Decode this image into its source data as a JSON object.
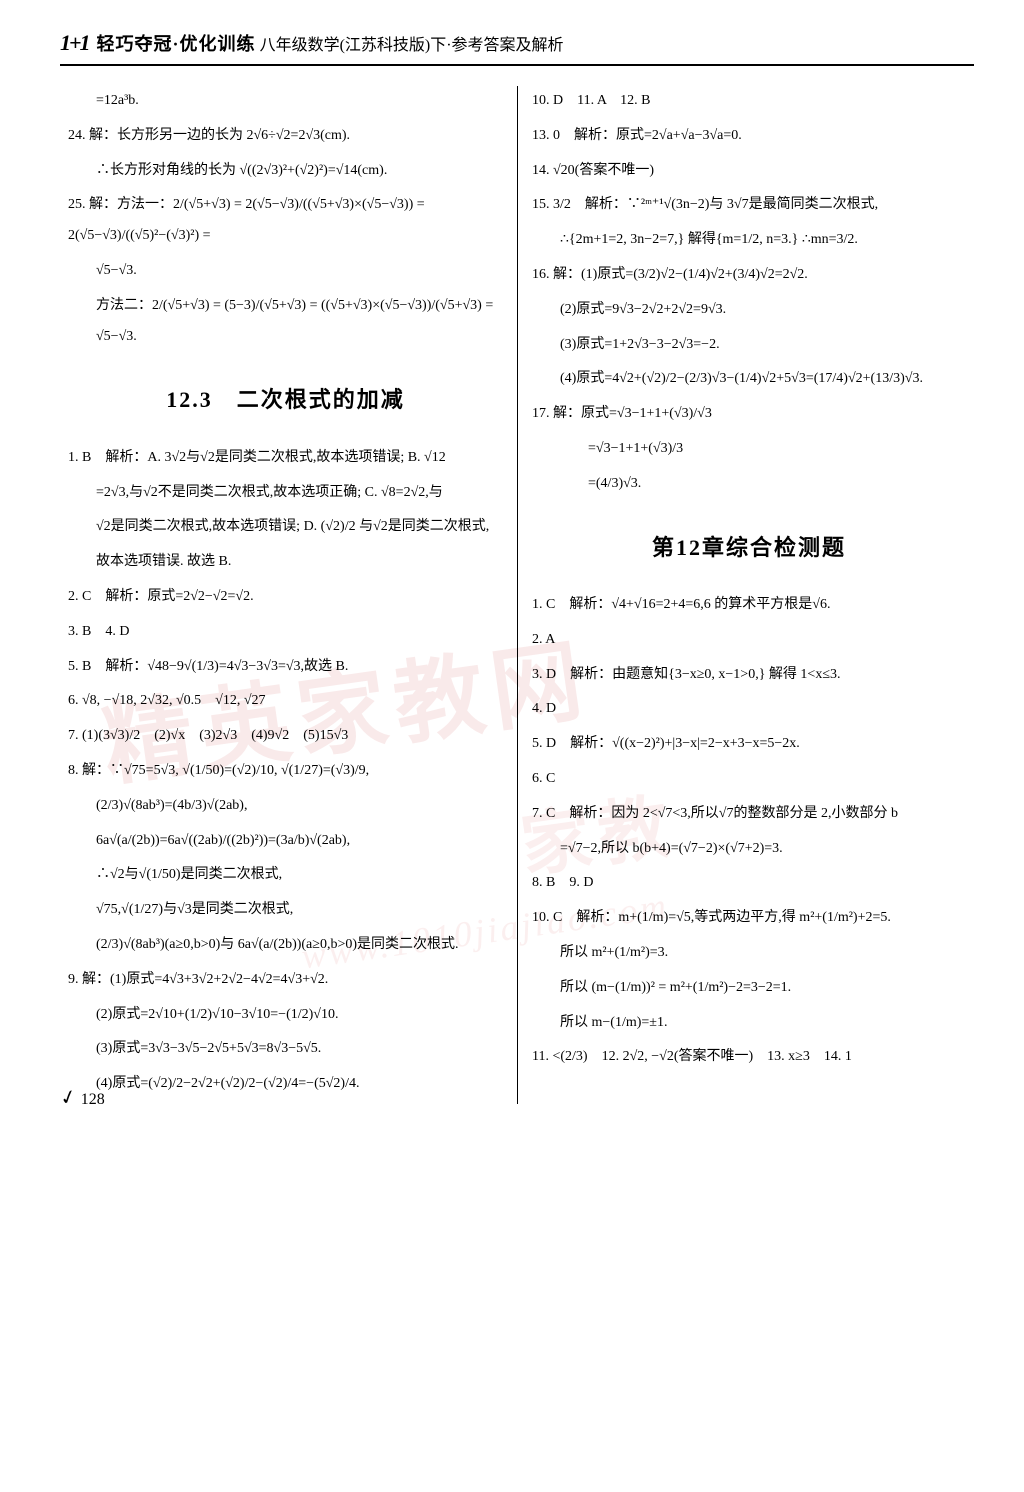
{
  "header": {
    "logo": "1+1",
    "title": "轻巧夺冠·优化训练",
    "sub": "八年级数学(江苏科技版)下·参考答案及解析"
  },
  "watermarks": {
    "wm1": "精英家教网",
    "wm2": "家教",
    "url": "www.1010jiajiao.com"
  },
  "left": {
    "l0": "=12a³b.",
    "l24a": "24. 解：长方形另一边的长为 2√6÷√2=2√3(cm).",
    "l24b": "∴长方形对角线的长为 √((2√3)²+(√2)²)=√14(cm).",
    "l25a": "25. 解：方法一：2/(√5+√3) = 2(√5−√3)/((√5+√3)×(√5−√3)) = 2(√5−√3)/((√5)²−(√3)²) =",
    "l25b": "√5−√3.",
    "l25c": "方法二：2/(√5+√3) = (5−3)/(√5+√3) = ((√5+√3)×(√5−√3))/(√5+√3) = √5−√3.",
    "sec_title": "12.3　二次根式的加减",
    "l1": "1. B　解析：A. 3√2与√2是同类二次根式,故本选项错误; B. √12",
    "l1b": "=2√3,与√2不是同类二次根式,故本选项正确; C. √8=2√2,与",
    "l1c": "√2是同类二次根式,故本选项错误; D. (√2)/2 与√2是同类二次根式,",
    "l1d": "故本选项错误. 故选 B.",
    "l2": "2. C　解析：原式=2√2−√2=√2.",
    "l3": "3. B　4. D",
    "l5": "5. B　解析：√48−9√(1/3)=4√3−3√3=√3,故选 B.",
    "l6": "6. √8, −√18, 2√32, √0.5　√12, √27",
    "l7": "7. (1)(3√3)/2　(2)√x　(3)2√3　(4)9√2　(5)15√3",
    "l8a": "8. 解：∵√75=5√3, √(1/50)=(√2)/10, √(1/27)=(√3)/9,",
    "l8b": "(2/3)√(8ab³)=(4b/3)√(2ab),",
    "l8c": "6a√(a/(2b))=6a√((2ab)/((2b)²))=(3a/b)√(2ab),",
    "l8d": "∴√2与√(1/50)是同类二次根式,",
    "l8e": "√75,√(1/27)与√3是同类二次根式,",
    "l8f": "(2/3)√(8ab³)(a≥0,b>0)与 6a√(a/(2b))(a≥0,b>0)是同类二次根式.",
    "l9a": "9. 解：(1)原式=4√3+3√2+2√2−4√2=4√3+√2.",
    "l9b": "(2)原式=2√10+(1/2)√10−3√10=−(1/2)√10.",
    "l9c": "(3)原式=3√3−3√5−2√5+5√3=8√3−5√5.",
    "l9d": "(4)原式=(√2)/2−2√2+(√2)/2−(√2)/4=−(5√2)/4."
  },
  "right": {
    "r10": "10. D　11. A　12. B",
    "r13": "13. 0　解析：原式=2√a+√a−3√a=0.",
    "r14": "14. √20(答案不唯一)",
    "r15a": "15. 3/2　解析：∵²ᵐ⁺¹√(3n−2)与 3√7是最简同类二次根式,",
    "r15b": "∴{2m+1=2, 3n−2=7,} 解得{m=1/2, n=3.} ∴mn=3/2.",
    "r16a": "16. 解：(1)原式=(3/2)√2−(1/4)√2+(3/4)√2=2√2.",
    "r16b": "(2)原式=9√3−2√2+2√2=9√3.",
    "r16c": "(3)原式=1+2√3−3−2√3=−2.",
    "r16d": "(4)原式=4√2+(√2)/2−(2/3)√3−(1/4)√2+5√3=(17/4)√2+(13/3)√3.",
    "r17a": "17. 解：原式=√3−1+1+(√3)/√3",
    "r17b": "=√3−1+1+(√3)/3",
    "r17c": "=(4/3)√3.",
    "sec_title": "第12章综合检测题",
    "c1": "1. C　解析：√4+√16=2+4=6,6 的算术平方根是√6.",
    "c2": "2. A",
    "c3": "3. D　解析：由题意知{3−x≥0, x−1>0,} 解得 1<x≤3.",
    "c4": "4. D",
    "c5": "5. D　解析：√((x−2)²)+|3−x|=2−x+3−x=5−2x.",
    "c6": "6. C",
    "c7a": "7. C　解析：因为 2<√7<3,所以√7的整数部分是 2,小数部分 b",
    "c7b": "=√7−2,所以 b(b+4)=(√7−2)×(√7+2)=3.",
    "c8": "8. B　9. D",
    "c10a": "10. C　解析：m+(1/m)=√5,等式两边平方,得 m²+(1/m²)+2=5.",
    "c10b": "所以 m²+(1/m²)=3.",
    "c10c": "所以 (m−(1/m))² = m²+(1/m²)−2=3−2=1.",
    "c10d": "所以 m−(1/m)=±1.",
    "c11": "11. <(2/3)　12. 2√2, −√2(答案不唯一)　13. x≥3　14. 1"
  },
  "footer": {
    "page": "128"
  }
}
